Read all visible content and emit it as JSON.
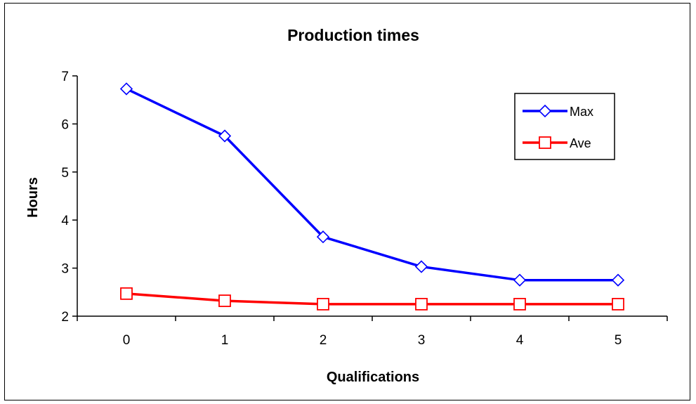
{
  "chart_data": {
    "type": "line",
    "title": "Production times",
    "xlabel": "Qualifications",
    "ylabel": "Hours",
    "x": [
      0,
      1,
      2,
      3,
      4,
      5
    ],
    "xticks": [
      "0",
      "1",
      "2",
      "3",
      "4",
      "5"
    ],
    "ylim": [
      2,
      7
    ],
    "yticks": [
      2,
      3,
      4,
      5,
      6,
      7
    ],
    "ytick_labels": [
      "2",
      "3",
      "4",
      "5",
      "6",
      "7"
    ],
    "grid": false,
    "legend_position": "top-right",
    "series": [
      {
        "name": "Max",
        "color": "#0000ff",
        "marker": "diamond",
        "values": [
          6.73,
          5.75,
          3.65,
          3.03,
          2.75,
          2.75
        ]
      },
      {
        "name": "Ave",
        "color": "#ff0000",
        "marker": "square",
        "values": [
          2.47,
          2.32,
          2.25,
          2.25,
          2.25,
          2.25
        ]
      }
    ]
  }
}
